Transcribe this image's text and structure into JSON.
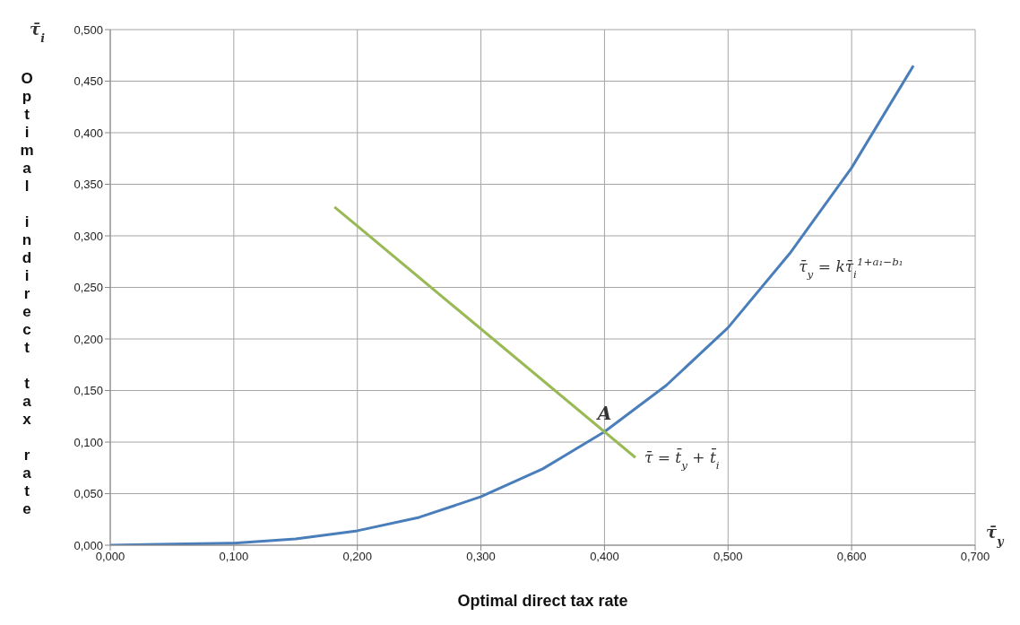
{
  "chart_data": {
    "type": "line",
    "xlabel": "Optimal direct tax rate",
    "ylabel": "Optimal indirect tax rate",
    "series": [
      {
        "color": "#4a7ebb",
        "x": [
          0,
          0.05,
          0.1,
          0.15,
          0.2,
          0.25,
          0.3,
          0.35,
          0.4,
          0.45,
          0.5,
          0.55,
          0.6,
          0.65
        ],
        "values": [
          0,
          0.001,
          0.002,
          0.006,
          0.014,
          0.027,
          0.047,
          0.074,
          0.11,
          0.155,
          0.211,
          0.283,
          0.366,
          0.465
        ]
      },
      {
        "color": "#98b954",
        "x": [
          0.1815,
          0.425
        ],
        "values": [
          0.328,
          0.085
        ]
      }
    ],
    "xlim": [
      0,
      0.7
    ],
    "xticks": [
      {
        "value": 0,
        "label": "0,000"
      },
      {
        "value": 0.1,
        "label": "0,100"
      },
      {
        "value": 0.2,
        "label": "0,200"
      },
      {
        "value": 0.3,
        "label": "0,300"
      },
      {
        "value": 0.4,
        "label": "0,400"
      },
      {
        "value": 0.5,
        "label": "0,500"
      },
      {
        "value": 0.6,
        "label": "0,600"
      },
      {
        "value": 0.7,
        "label": "0,700"
      }
    ],
    "ylim": [
      0,
      0.5
    ],
    "yticks": [
      {
        "value": 0,
        "label": "0,000"
      },
      {
        "value": 0.05,
        "label": "0,050"
      },
      {
        "value": 0.1,
        "label": "0,100"
      },
      {
        "value": 0.15,
        "label": "0,150"
      },
      {
        "value": 0.2,
        "label": "0,200"
      },
      {
        "value": 0.25,
        "label": "0,250"
      },
      {
        "value": 0.3,
        "label": "0,300"
      },
      {
        "value": 0.35,
        "label": "0,350"
      },
      {
        "value": 0.4,
        "label": "0,400"
      },
      {
        "value": 0.45,
        "label": "0,450"
      },
      {
        "value": 0.5,
        "label": "0,500"
      }
    ],
    "grid": true,
    "legend": false,
    "marker": "none",
    "line_style": "solid",
    "annotations": [
      "τ̄$_{i}$",
      "τ̄$_{y}$",
      {
        "text": "τ̄$_{y}$ = kτ̄$_{i}$$^{1+a₁−b₁}$",
        "x": 0.55,
        "y": 0.283
      },
      {
        "text": "τ̄ = t̄$_{y}$ + t̄$_{i}$",
        "x": 0.425,
        "y": 0.085
      },
      {
        "text": "A",
        "x": 0.4,
        "y": 0.11
      }
    ]
  }
}
